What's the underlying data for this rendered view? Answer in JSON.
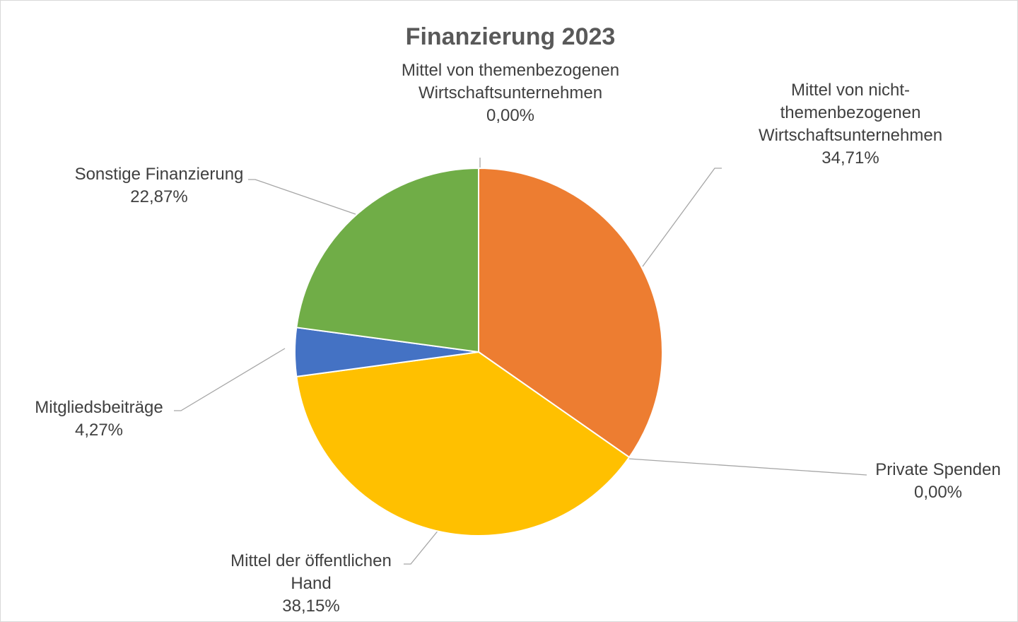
{
  "chart_data": {
    "type": "pie",
    "title": "Finanzierung 2023",
    "slices": [
      {
        "key": "themen",
        "label_lines": [
          "Mittel von themenbezogenen",
          "Wirtschaftsunternehmen"
        ],
        "value": 0.0,
        "value_label": "0,00%",
        "color": "#A5A5A5"
      },
      {
        "key": "nicht",
        "label_lines": [
          "Mittel von nicht-",
          "themenbezogenen",
          "Wirtschaftsunternehmen"
        ],
        "value": 34.71,
        "value_label": "34,71%",
        "color": "#ED7D31"
      },
      {
        "key": "private",
        "label_lines": [
          "Private Spenden"
        ],
        "value": 0.0,
        "value_label": "0,00%",
        "color": "#5B9BD5"
      },
      {
        "key": "oeffentlich",
        "label_lines": [
          "Mittel der öffentlichen",
          "Hand"
        ],
        "value": 38.15,
        "value_label": "38,15%",
        "color": "#FFC000"
      },
      {
        "key": "mitglied",
        "label_lines": [
          "Mitgliedsbeiträge"
        ],
        "value": 4.27,
        "value_label": "4,27%",
        "color": "#4472C4"
      },
      {
        "key": "sonstige",
        "label_lines": [
          "Sonstige Finanzierung"
        ],
        "value": 22.87,
        "value_label": "22,87%",
        "color": "#70AD47"
      }
    ]
  }
}
